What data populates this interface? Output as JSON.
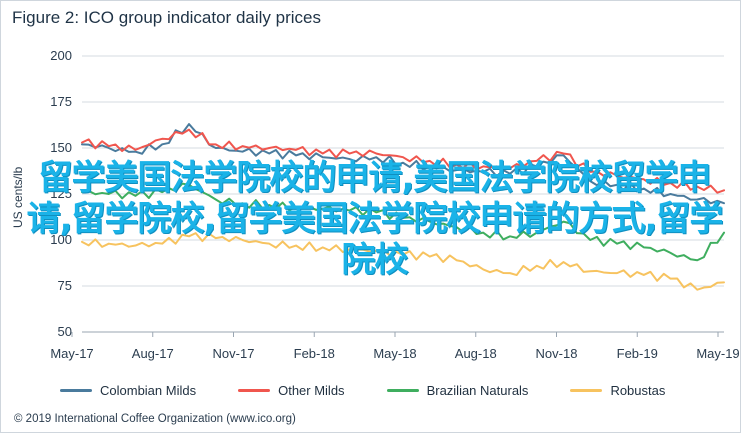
{
  "figure": {
    "title": "Figure 2: ICO group indicator daily prices",
    "footer": "© 2019 International Coffee Organization (www.ico.org)"
  },
  "overlay": {
    "text": "留学美国法学院校的申请,美国法学院校留学申请,留学院校,留学美国法学院校申请的方式,留学院校"
  },
  "chart_data": {
    "type": "line",
    "title": "Figure 2: ICO group indicator daily prices",
    "xlabel": "",
    "ylabel": "US cents/lb",
    "ylim": [
      50,
      200
    ],
    "yticks": [
      50,
      75,
      100,
      125,
      150,
      175,
      200
    ],
    "xticks": [
      "May-17",
      "Aug-17",
      "Nov-17",
      "Feb-18",
      "May-18",
      "Aug-18",
      "Nov-18",
      "Feb-19",
      "May-19"
    ],
    "x": [
      0,
      1,
      2,
      3,
      4,
      5,
      6,
      7,
      8,
      9,
      10,
      11,
      12,
      13,
      14,
      15,
      16,
      17,
      18,
      19,
      20,
      21,
      22,
      23,
      24
    ],
    "grid": true,
    "legend_position": "bottom",
    "series": [
      {
        "name": "Colombian Milds",
        "color": "#4a7b9d",
        "values": [
          152,
          150,
          148,
          152,
          163,
          150,
          148,
          147,
          146,
          145,
          144,
          145,
          142,
          140,
          138,
          137,
          136,
          140,
          146,
          132,
          130,
          128,
          125,
          122,
          120
        ]
      },
      {
        "name": "Other Milds",
        "color": "#f0564e",
        "values": [
          153,
          151,
          149,
          155,
          160,
          152,
          151,
          150,
          149,
          147,
          147,
          147,
          145,
          143,
          141,
          140,
          139,
          143,
          147,
          137,
          135,
          133,
          131,
          129,
          127
        ]
      },
      {
        "name": "Brazilian Naturals",
        "color": "#3fae5f",
        "values": [
          126,
          125,
          124,
          126,
          130,
          122,
          120,
          119,
          118,
          117,
          116,
          115,
          112,
          110,
          107,
          104,
          102,
          104,
          110,
          100,
          98,
          96,
          93,
          89,
          104
        ]
      },
      {
        "name": "Robustas",
        "color": "#f7c35f",
        "values": [
          99,
          98,
          97,
          98,
          102,
          101,
          100,
          98,
          97,
          96,
          95,
          94,
          92,
          91,
          89,
          84,
          82,
          86,
          88,
          83,
          82,
          81,
          79,
          73,
          77
        ]
      }
    ]
  }
}
